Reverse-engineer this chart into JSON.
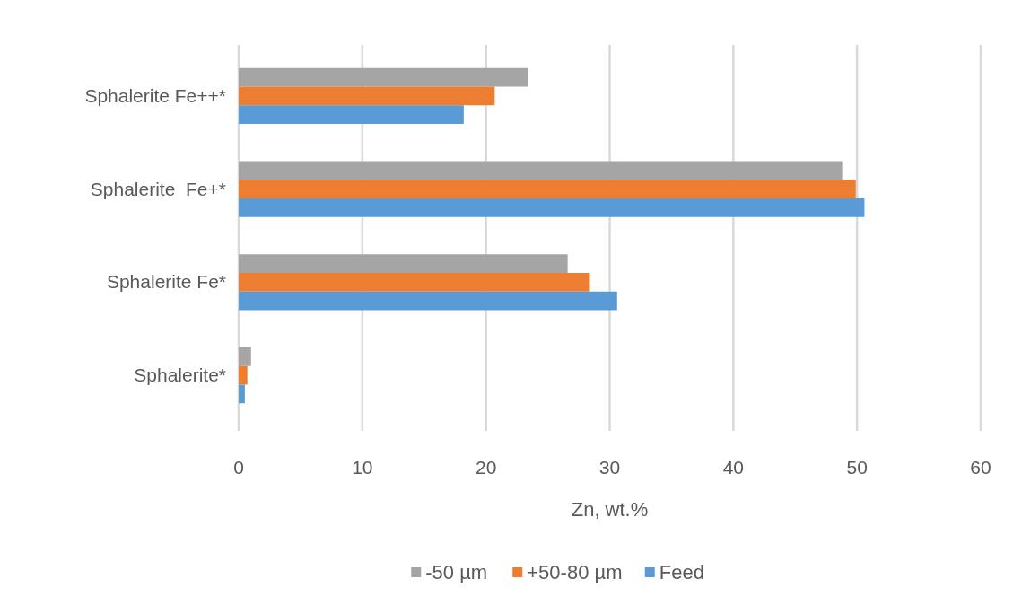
{
  "chart_data": {
    "type": "bar",
    "orientation": "horizontal",
    "xlabel": "Zn, wt.%",
    "categories": [
      "Sphalerite Fe++*",
      "Sphalerite  Fe+*",
      "Sphalerite Fe*",
      "Sphalerite*"
    ],
    "series": [
      {
        "name": "-50 µm",
        "color": "#a5a5a5",
        "values": [
          23.4,
          48.8,
          26.6,
          1.0
        ]
      },
      {
        "name": "+50-80 µm",
        "color": "#ed7d31",
        "values": [
          20.7,
          49.9,
          28.4,
          0.7
        ]
      },
      {
        "name": "Feed",
        "color": "#5b9bd5",
        "values": [
          18.2,
          50.6,
          30.6,
          0.5
        ]
      }
    ],
    "xlim": [
      0,
      60
    ],
    "xticks": [
      0,
      10,
      20,
      30,
      40,
      50,
      60
    ],
    "grid": "x",
    "legend": "bottom"
  }
}
